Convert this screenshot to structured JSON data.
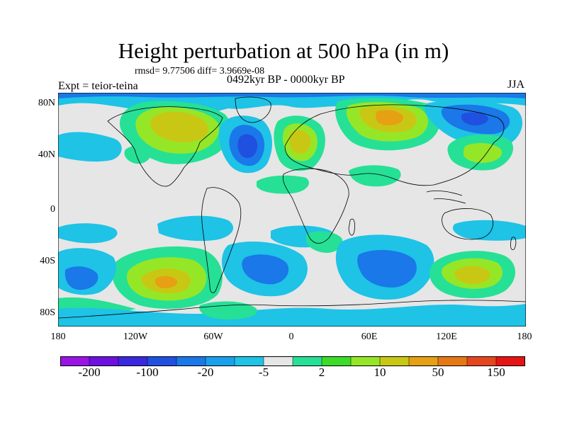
{
  "title": "Height perturbation at 500 hPa (in m)",
  "stats": "rmsd= 9.77506 diff= 3.9669e-08",
  "experiment": "Expt = teior-teina",
  "period": "0492kyr BP - 0000kyr BP",
  "season": "JJA",
  "map": {
    "projection": "cylindrical equidistant",
    "lon_range": [
      -180,
      180
    ],
    "lat_range": [
      -90,
      90
    ],
    "y_ticks": [
      "80N",
      "40N",
      "0",
      "40S",
      "80S"
    ],
    "x_ticks": [
      "180",
      "120W",
      "60W",
      "0",
      "60E",
      "120E",
      "180"
    ],
    "field": "500 hPa geopotential height perturbation",
    "units": "m"
  },
  "colorbar": {
    "labels": [
      "-200",
      "-100",
      "-20",
      "-5",
      "2",
      "10",
      "50",
      "150"
    ],
    "colors": [
      "#9a14e6",
      "#6d10e0",
      "#3b28e0",
      "#1f50e0",
      "#1a78e8",
      "#19a0ec",
      "#1ec3e6",
      "#e6e6e6",
      "#26e096",
      "#3cdc28",
      "#96e628",
      "#c8c814",
      "#e6a014",
      "#e67814",
      "#e6461e",
      "#e61414"
    ]
  }
}
